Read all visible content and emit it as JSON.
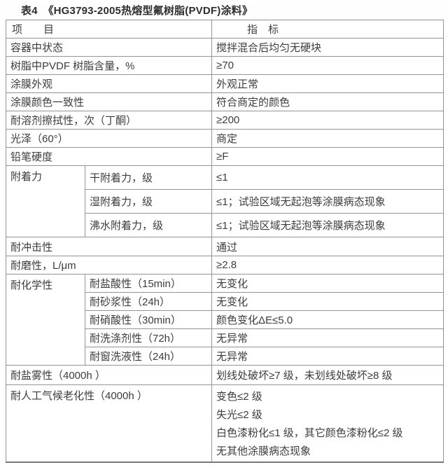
{
  "caption": "表4　《HG3793-2005热熔型氟树脂(PVDF)涂料》",
  "colors": {
    "border": "#949494",
    "outer_border": "#777777",
    "text": "#3c3c3c",
    "background": "#ffffff"
  },
  "table": {
    "header": {
      "item": "项　　目",
      "value": "指　标"
    },
    "rows": [
      {
        "item": "容器中状态",
        "value": "搅拌混合后均匀无硬块"
      },
      {
        "item": "树脂中PVDF 树脂含量，%",
        "value": "≥70"
      },
      {
        "item": "涂膜外观",
        "value": "外观正常"
      },
      {
        "item": "涂膜颜色一致性",
        "value": "符合商定的颜色"
      },
      {
        "item": "耐溶剂擦拭性，次（丁酮）",
        "value": "≥200"
      },
      {
        "item": "光泽（60°）",
        "value": "商定"
      },
      {
        "item": "铅笔硬度",
        "value": "≥F"
      },
      {
        "group": "附着力",
        "sub": "干附着力，级",
        "value": "≤1"
      },
      {
        "sub": "湿附着力，级",
        "value": "≤1；试验区域无起泡等涂膜病态现象"
      },
      {
        "sub": "沸水附着力，级",
        "value": "≤1；试验区域无起泡等涂膜病态现象"
      },
      {
        "item": "耐冲击性",
        "value": "通过"
      },
      {
        "item": "耐磨性，L/μm",
        "value": "≥2.8"
      },
      {
        "group": "耐化学性",
        "sub": "耐盐酸性（15min）",
        "value": "无变化"
      },
      {
        "sub": "耐砂浆性（24h）",
        "value": "无变化"
      },
      {
        "sub": "耐硝酸性（30min）",
        "value": "颜色变化ΔE≤5.0"
      },
      {
        "sub": "耐洗涤剂性（72h）",
        "value": "无异常"
      },
      {
        "sub": "耐窗洗液性（24h）",
        "value": "无异常"
      },
      {
        "item": "耐盐雾性（4000h ）",
        "value": "划线处破坏≥7 级，未划线处破坏≥8 级"
      },
      {
        "item": "耐人工气候老化性（4000h ）",
        "lines": [
          "变色≤2 级",
          "失光≤2 级",
          "白色漆粉化≤1 级，其它颜色漆粉化≤2 级",
          "无其他涂膜病态现象"
        ]
      }
    ]
  }
}
